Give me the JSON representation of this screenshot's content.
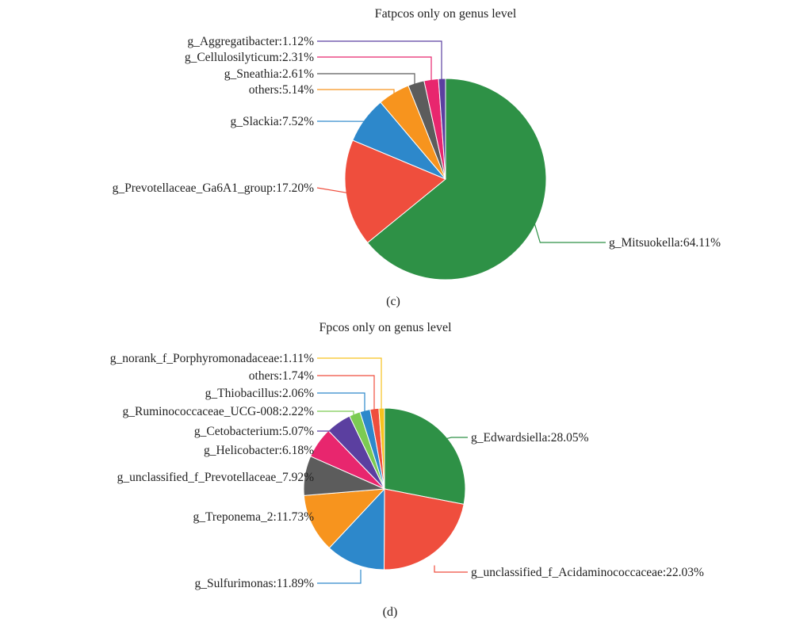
{
  "chart_data": [
    {
      "type": "pie",
      "title": "Fatpcos only on genus level",
      "panel_label": "(c)",
      "start": "12 o'clock",
      "direction": "clockwise",
      "slices": [
        {
          "label": "g_Mitsuokella:64.11%",
          "value": 64.11,
          "color": "#2e9146"
        },
        {
          "label": "g_Prevotellaceae_Ga6A1_group:17.20%",
          "value": 17.2,
          "color": "#ef4e3d"
        },
        {
          "label": "g_Slackia:7.52%",
          "value": 7.52,
          "color": "#2d88cb"
        },
        {
          "label": "others:5.14%",
          "value": 5.14,
          "color": "#f7941e"
        },
        {
          "label": "g_Sneathia:2.61%",
          "value": 2.61,
          "color": "#5c5c5c"
        },
        {
          "label": "g_Cellulosilyticum:2.31%",
          "value": 2.31,
          "color": "#e8266e"
        },
        {
          "label": "g_Aggregatibacter:1.12%",
          "value": 1.12,
          "color": "#5b3fa0"
        }
      ]
    },
    {
      "type": "pie",
      "title": "Fpcos only on genus level",
      "panel_label": "(d)",
      "start": "12 o'clock",
      "direction": "clockwise",
      "slices": [
        {
          "label": "g_Edwardsiella:28.05%",
          "value": 28.05,
          "color": "#2e9146"
        },
        {
          "label": "g_unclassified_f_Acidaminococcaceae:22.03%",
          "value": 22.03,
          "color": "#ef4e3d"
        },
        {
          "label": "g_Sulfurimonas:11.89%",
          "value": 11.89,
          "color": "#2d88cb"
        },
        {
          "label": "g_Treponema_2:11.73%",
          "value": 11.73,
          "color": "#f7941e"
        },
        {
          "label": "g_unclassified_f_Prevotellaceae_7.92%",
          "value": 7.92,
          "color": "#5c5c5c"
        },
        {
          "label": "g_Helicobacter:6.18%",
          "value": 6.18,
          "color": "#e8266e"
        },
        {
          "label": "g_Cetobacterium:5.07%",
          "value": 5.07,
          "color": "#5b3fa0"
        },
        {
          "label": "g_Ruminococcaceae_UCG-008:2.22%",
          "value": 2.22,
          "color": "#7ccb52"
        },
        {
          "label": "g_Thiobacillus:2.06%",
          "value": 2.06,
          "color": "#2d88cb"
        },
        {
          "label": "others:1.74%",
          "value": 1.74,
          "color": "#ef4e3d"
        },
        {
          "label": "g_norank_f_Porphyromonadaceae:1.11%",
          "value": 1.11,
          "color": "#f7c21e"
        }
      ]
    }
  ]
}
